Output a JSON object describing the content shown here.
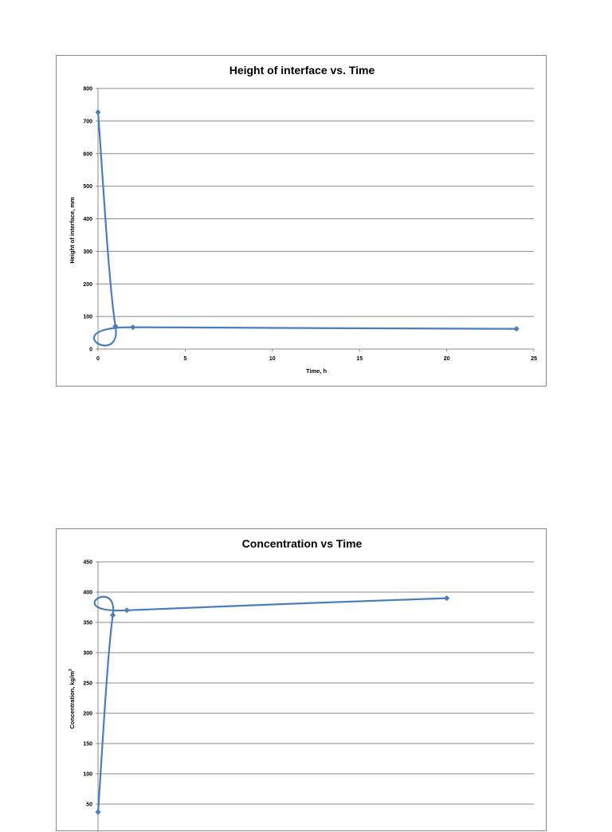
{
  "chart_data": [
    {
      "type": "line",
      "title": "Height of interface vs. Time",
      "xlabel": "Time, h",
      "ylabel": "Height of interface, mm",
      "xlim": [
        0,
        25
      ],
      "ylim": [
        0,
        800
      ],
      "x_ticks": [
        0,
        5,
        10,
        15,
        20,
        25
      ],
      "y_ticks": [
        0,
        100,
        200,
        300,
        400,
        500,
        600,
        700,
        800
      ],
      "grid": "horizontal",
      "legend": "none",
      "series": [
        {
          "color": "#4a7ebb",
          "smooth": true,
          "points": [
            [
              0,
              727
            ],
            [
              1,
              70
            ],
            [
              2,
              67
            ],
            [
              24,
              62
            ]
          ]
        }
      ]
    },
    {
      "type": "line",
      "title": "Concentration vs Time",
      "xlabel": "",
      "ylabel": "Concentration, kg/m",
      "ylabel_superscript": "3",
      "xlim": [
        0,
        25
      ],
      "ylim": [
        0,
        450
      ],
      "y_ticks": [
        50,
        100,
        150,
        200,
        250,
        300,
        350,
        400,
        450
      ],
      "grid": "horizontal",
      "legend": "none",
      "series": [
        {
          "color": "#4a7ebb",
          "smooth": true,
          "points": [
            [
              0,
              37
            ],
            [
              0.85,
              362
            ],
            [
              1.65,
              370
            ],
            [
              20,
              390
            ]
          ]
        }
      ]
    }
  ]
}
